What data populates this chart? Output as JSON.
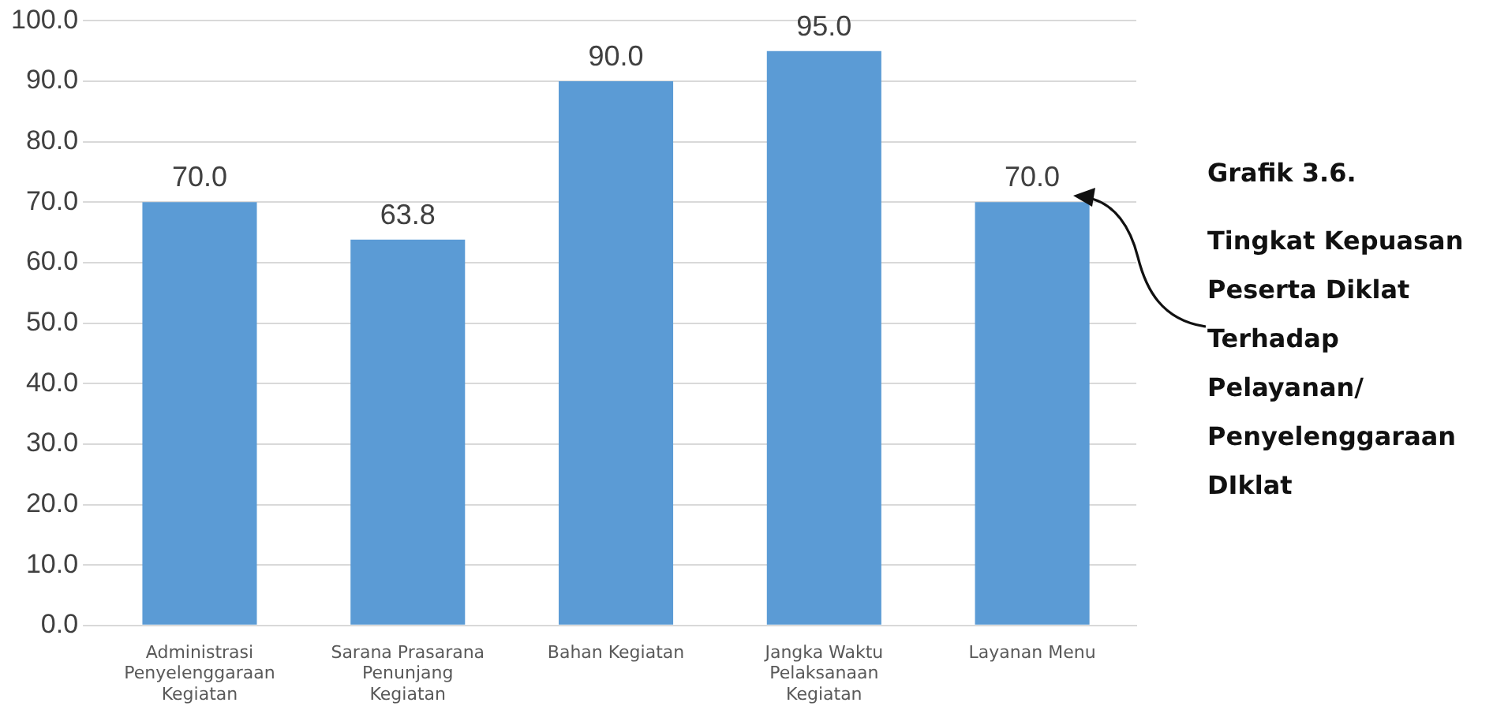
{
  "chart_data": {
    "type": "bar",
    "title": "Grafik 3.6.",
    "subtitle": "Tingkat Kepuasan Peserta Diklat Terhadap Pelayanan/ Penyelenggaraan DIklat",
    "categories": [
      "Administrasi Penyelenggaraan Kegiatan",
      "Sarana Prasarana Penunjang Kegiatan",
      "Bahan Kegiatan",
      "Jangka Waktu Pelaksanaan Kegiatan",
      "Layanan Menu"
    ],
    "values": [
      70.0,
      63.8,
      90.0,
      95.0,
      70.0
    ],
    "value_labels": [
      "70.0",
      "63.8",
      "90.0",
      "95.0",
      "70.0"
    ],
    "color": "#5b9bd5",
    "ylim": [
      0,
      100
    ],
    "yticks": [
      {
        "value": 0,
        "label": "0.0"
      },
      {
        "value": 10,
        "label": "10.0"
      },
      {
        "value": 20,
        "label": "20.0"
      },
      {
        "value": 30,
        "label": "30.0"
      },
      {
        "value": 40,
        "label": "40.0"
      },
      {
        "value": 50,
        "label": "50.0"
      },
      {
        "value": 60,
        "label": "60.0"
      },
      {
        "value": 70,
        "label": "70.0"
      },
      {
        "value": 80,
        "label": "80.0"
      },
      {
        "value": 90,
        "label": "90.0"
      },
      {
        "value": 100,
        "label": "100.0"
      }
    ],
    "grid": "y",
    "legend": false
  }
}
